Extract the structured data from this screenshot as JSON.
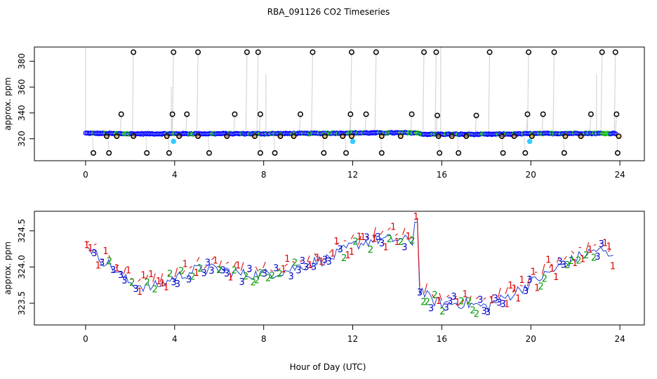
{
  "figure": {
    "title": "RBA_091126  CO2 Timeseries",
    "xlabel": "Hour of Day (UTC)"
  },
  "chart_data": [
    {
      "type": "scatter",
      "ylabel": "approx. ppm",
      "xlim": [
        -2.3,
        25.1
      ],
      "ylim": [
        303,
        391
      ],
      "x_ticks": [
        0,
        4,
        8,
        12,
        16,
        20,
        24
      ],
      "y_ticks": [
        320,
        340,
        360,
        380
      ],
      "colors": {
        "trace": "#bbbbbb",
        "series": "#0000ff",
        "series_alt": "#00bb00",
        "low": "#33ccff",
        "flag": "#000000",
        "flag_fill": "#ff9900"
      },
      "baseline": [
        [
          0.0,
          324.3
        ],
        [
          2.0,
          323.8
        ],
        [
          4.0,
          323.9
        ],
        [
          8.0,
          323.9
        ],
        [
          10.0,
          324.1
        ],
        [
          12.0,
          324.5
        ],
        [
          14.8,
          324.6
        ],
        [
          15.2,
          323.5
        ],
        [
          16.0,
          323.5
        ],
        [
          18.0,
          323.4
        ],
        [
          20.0,
          323.9
        ],
        [
          22.0,
          324.2
        ],
        [
          23.8,
          324.1
        ]
      ],
      "high_flags": [
        [
          2.15,
          387
        ],
        [
          3.95,
          387
        ],
        [
          5.05,
          387
        ],
        [
          7.25,
          387
        ],
        [
          7.75,
          387
        ],
        [
          10.2,
          387
        ],
        [
          11.95,
          387
        ],
        [
          13.05,
          387
        ],
        [
          15.2,
          387
        ],
        [
          15.75,
          387
        ],
        [
          18.15,
          387
        ],
        [
          19.9,
          387
        ],
        [
          21.05,
          387
        ],
        [
          23.2,
          387
        ],
        [
          23.8,
          387
        ]
      ],
      "mid_flags": [
        [
          1.6,
          339
        ],
        [
          3.9,
          339
        ],
        [
          4.55,
          339
        ],
        [
          6.7,
          339
        ],
        [
          7.85,
          339
        ],
        [
          9.65,
          339
        ],
        [
          11.9,
          339
        ],
        [
          12.6,
          339
        ],
        [
          14.65,
          339
        ],
        [
          15.8,
          338
        ],
        [
          17.55,
          338
        ],
        [
          19.85,
          339
        ],
        [
          20.55,
          339
        ],
        [
          22.7,
          339
        ],
        [
          23.85,
          339
        ]
      ],
      "low_flags": [
        [
          0.95,
          322
        ],
        [
          1.4,
          322
        ],
        [
          2.15,
          322
        ],
        [
          3.65,
          322
        ],
        [
          4.2,
          322
        ],
        [
          5.05,
          322
        ],
        [
          6.35,
          322
        ],
        [
          7.6,
          322
        ],
        [
          8.75,
          322
        ],
        [
          9.35,
          322
        ],
        [
          10.75,
          322
        ],
        [
          11.55,
          322
        ],
        [
          11.95,
          322
        ],
        [
          13.3,
          322
        ],
        [
          14.15,
          322
        ],
        [
          15.85,
          322
        ],
        [
          16.45,
          322
        ],
        [
          17.1,
          322
        ],
        [
          18.7,
          322
        ],
        [
          19.25,
          322
        ],
        [
          20.05,
          322
        ],
        [
          21.55,
          322
        ],
        [
          22.25,
          322
        ],
        [
          23.95,
          322
        ]
      ],
      "bottom_flags": [
        [
          0.35,
          309
        ],
        [
          1.05,
          309
        ],
        [
          2.75,
          309
        ],
        [
          3.75,
          309
        ],
        [
          5.55,
          309
        ],
        [
          7.85,
          309
        ],
        [
          8.5,
          309
        ],
        [
          10.7,
          309
        ],
        [
          11.7,
          309
        ],
        [
          13.3,
          309
        ],
        [
          15.9,
          309
        ],
        [
          16.75,
          309
        ],
        [
          18.75,
          309
        ],
        [
          19.75,
          309
        ],
        [
          21.5,
          309
        ],
        [
          23.9,
          309
        ]
      ],
      "low_points": [
        [
          3.95,
          318
        ],
        [
          12.0,
          318
        ],
        [
          19.95,
          318
        ]
      ]
    },
    {
      "type": "scatter",
      "ylabel": "approx. ppm",
      "xlim": [
        -2.3,
        25.1
      ],
      "ylim": [
        323.2,
        324.77
      ],
      "x_ticks": [
        0,
        4,
        8,
        12,
        16,
        20,
        24
      ],
      "y_ticks": [
        323.5,
        324.0,
        324.5
      ],
      "y_tick_labels": [
        "323.5",
        "324.0",
        "324.5"
      ],
      "series": [
        {
          "name": "1",
          "color": "#dd0000"
        },
        {
          "name": "2",
          "color": "#009900"
        },
        {
          "name": "3",
          "color": "#0000cc"
        }
      ],
      "trend": [
        [
          0.0,
          324.35
        ],
        [
          0.5,
          324.15
        ],
        [
          1.0,
          324.05
        ],
        [
          1.5,
          323.9
        ],
        [
          2.0,
          323.78
        ],
        [
          2.5,
          323.74
        ],
        [
          3.0,
          323.72
        ],
        [
          3.5,
          323.78
        ],
        [
          4.0,
          323.85
        ],
        [
          5.0,
          323.97
        ],
        [
          6.0,
          323.97
        ],
        [
          7.0,
          323.9
        ],
        [
          8.0,
          323.9
        ],
        [
          9.0,
          323.95
        ],
        [
          10.0,
          324.05
        ],
        [
          11.0,
          324.12
        ],
        [
          12.0,
          324.3
        ],
        [
          13.0,
          324.38
        ],
        [
          14.0,
          324.38
        ],
        [
          14.7,
          324.35
        ],
        [
          14.85,
          324.6
        ],
        [
          15.0,
          323.7
        ],
        [
          15.5,
          323.55
        ],
        [
          16.0,
          323.5
        ],
        [
          17.0,
          323.5
        ],
        [
          18.0,
          323.45
        ],
        [
          19.0,
          323.6
        ],
        [
          20.0,
          323.78
        ],
        [
          21.0,
          323.95
        ],
        [
          22.0,
          324.12
        ],
        [
          23.0,
          324.25
        ],
        [
          23.8,
          324.1
        ]
      ]
    }
  ]
}
